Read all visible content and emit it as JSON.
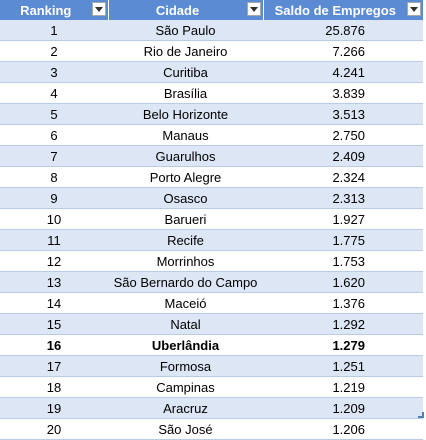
{
  "table": {
    "headers": [
      "Ranking",
      "Cidade",
      "Saldo de Empregos"
    ],
    "highlight_ranking": "16",
    "colors": {
      "header_bg": "#5b8bd3",
      "band_bg": "#dce6f4"
    },
    "filter_icon": "dropdown-arrow-icon",
    "rows": [
      {
        "ranking": "1",
        "cidade": "São Paulo",
        "saldo": "25.876"
      },
      {
        "ranking": "2",
        "cidade": "Rio de Janeiro",
        "saldo": "7.266"
      },
      {
        "ranking": "3",
        "cidade": "Curitiba",
        "saldo": "4.241"
      },
      {
        "ranking": "4",
        "cidade": "Brasília",
        "saldo": "3.839"
      },
      {
        "ranking": "5",
        "cidade": "Belo Horizonte",
        "saldo": "3.513"
      },
      {
        "ranking": "6",
        "cidade": "Manaus",
        "saldo": "2.750"
      },
      {
        "ranking": "7",
        "cidade": "Guarulhos",
        "saldo": "2.409"
      },
      {
        "ranking": "8",
        "cidade": "Porto Alegre",
        "saldo": "2.324"
      },
      {
        "ranking": "9",
        "cidade": "Osasco",
        "saldo": "2.313"
      },
      {
        "ranking": "10",
        "cidade": "Barueri",
        "saldo": "1.927"
      },
      {
        "ranking": "11",
        "cidade": "Recife",
        "saldo": "1.775"
      },
      {
        "ranking": "12",
        "cidade": "Morrinhos",
        "saldo": "1.753"
      },
      {
        "ranking": "13",
        "cidade": "São Bernardo do Campo",
        "saldo": "1.620"
      },
      {
        "ranking": "14",
        "cidade": "Maceió",
        "saldo": "1.376"
      },
      {
        "ranking": "15",
        "cidade": "Natal",
        "saldo": "1.292"
      },
      {
        "ranking": "16",
        "cidade": "Uberlândia",
        "saldo": "1.279"
      },
      {
        "ranking": "17",
        "cidade": "Formosa",
        "saldo": "1.251"
      },
      {
        "ranking": "18",
        "cidade": "Campinas",
        "saldo": "1.219"
      },
      {
        "ranking": "19",
        "cidade": "Aracruz",
        "saldo": "1.209"
      },
      {
        "ranking": "20",
        "cidade": "São José",
        "saldo": "1.206"
      }
    ]
  }
}
